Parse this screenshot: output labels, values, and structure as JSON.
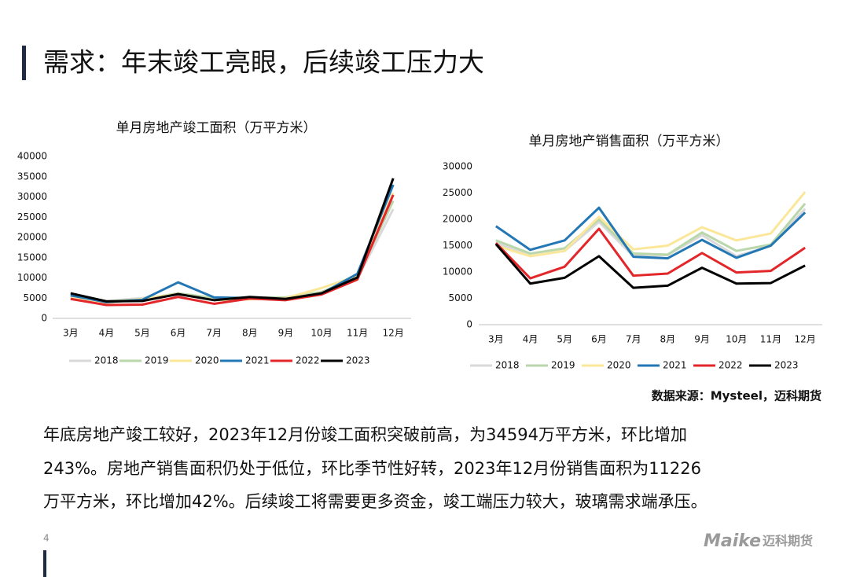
{
  "slide_title": "需求：年末竣工亮眼，后续竣工压力大",
  "body": [
    "年底房地产竣工较好，2023年12月份竣工面积突破前高，为34594万平方米，环比增加",
    "243%。房地产销售面积仍处于低位，环比季节性好转，2023年12月份销售面积为11226",
    "万平方米，环比增加42%。后续竣工将需要更多资金，竣工端压力较大，玻璃需求端承压。"
  ],
  "source": "数据来源：Mysteel，迈科期货",
  "page_number": "4",
  "logo": [
    "Maike",
    "迈科期货"
  ],
  "chart_data": [
    {
      "type": "line",
      "title": "单月房地产竣工面积（万平方米）",
      "categories": [
        "3月",
        "4月",
        "5月",
        "6月",
        "7月",
        "8月",
        "9月",
        "10月",
        "11月",
        "12月"
      ],
      "ylim": [
        0,
        40000
      ],
      "yticks": [
        0,
        5000,
        10000,
        15000,
        20000,
        25000,
        30000,
        35000,
        40000
      ],
      "legend": "bottom",
      "series": [
        {
          "name": "2018",
          "color": "#d9d9d9",
          "values": [
            5300,
            4300,
            5000,
            5900,
            4800,
            5000,
            5100,
            6300,
            9800,
            27000
          ]
        },
        {
          "name": "2019",
          "color": "#b9d7aa",
          "values": [
            5500,
            4200,
            4700,
            6200,
            5000,
            5100,
            5200,
            6500,
            10200,
            29000
          ]
        },
        {
          "name": "2020",
          "color": "#fbe79a",
          "values": [
            5000,
            3800,
            4800,
            6000,
            4500,
            4700,
            5000,
            7500,
            10500,
            31000
          ]
        },
        {
          "name": "2021",
          "color": "#2277b4",
          "values": [
            5700,
            4000,
            4600,
            8900,
            5200,
            5000,
            4800,
            6100,
            11000,
            33000
          ]
        },
        {
          "name": "2022",
          "color": "#e3262a",
          "values": [
            4800,
            3300,
            3400,
            5300,
            3600,
            4900,
            4500,
            5900,
            9600,
            30500
          ]
        },
        {
          "name": "2023",
          "color": "#000000",
          "values": [
            6200,
            4200,
            4300,
            6000,
            4500,
            5300,
            4800,
            6200,
            10100,
            34594
          ]
        }
      ]
    },
    {
      "type": "line",
      "title": "单月房地产销售面积（万平方米）",
      "categories": [
        "3月",
        "4月",
        "5月",
        "6月",
        "7月",
        "8月",
        "9月",
        "10月",
        "11月",
        "12月"
      ],
      "ylim": [
        0,
        30000
      ],
      "yticks": [
        0,
        5000,
        10000,
        15000,
        20000,
        25000,
        30000
      ],
      "legend": "bottom",
      "series": [
        {
          "name": "2018",
          "color": "#d9d9d9",
          "values": [
            15500,
            13000,
            14000,
            19500,
            13000,
            13200,
            17000,
            13000,
            15000,
            22000
          ]
        },
        {
          "name": "2019",
          "color": "#b9d7aa",
          "values": [
            16000,
            13500,
            14500,
            20000,
            13500,
            13300,
            17500,
            14000,
            15200,
            23000
          ]
        },
        {
          "name": "2020",
          "color": "#fbe79a",
          "values": [
            15000,
            13000,
            14000,
            20500,
            14300,
            15000,
            18500,
            16000,
            17300,
            25200
          ]
        },
        {
          "name": "2021",
          "color": "#2277b4",
          "values": [
            18700,
            14200,
            16000,
            22200,
            12900,
            12600,
            16100,
            12700,
            15000,
            21300
          ]
        },
        {
          "name": "2022",
          "color": "#e3262a",
          "values": [
            15500,
            8800,
            11000,
            18200,
            9300,
            9700,
            13600,
            9900,
            10200,
            14600
          ]
        },
        {
          "name": "2023",
          "color": "#000000",
          "values": [
            15300,
            7800,
            8900,
            13000,
            7000,
            7400,
            10800,
            7800,
            7900,
            11226
          ]
        }
      ]
    }
  ]
}
